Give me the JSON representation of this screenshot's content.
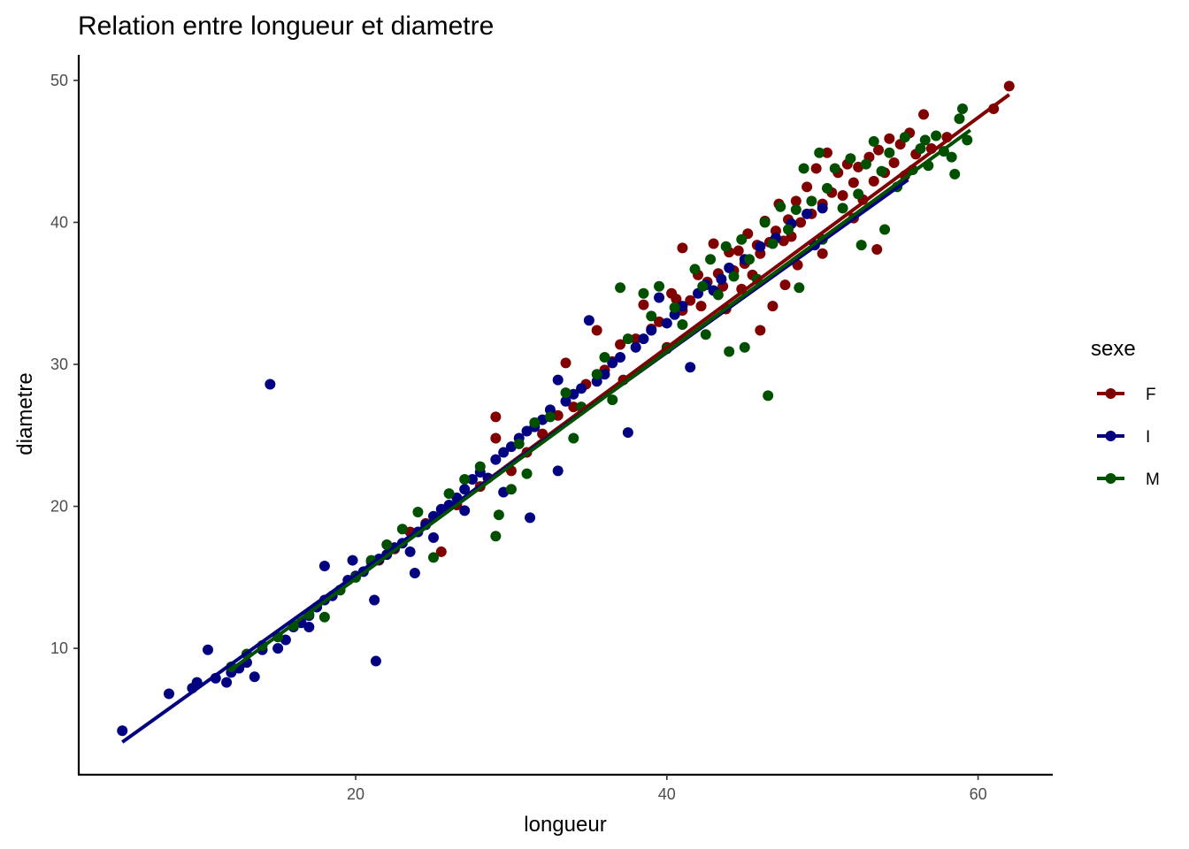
{
  "chart_data": {
    "type": "scatter",
    "title": "Relation entre longueur et diametre",
    "xlabel": "longueur",
    "ylabel": "diametre",
    "xlim": [
      2.2,
      64.8
    ],
    "ylim": [
      1.1,
      51.8
    ],
    "xticks": [
      20,
      40,
      60
    ],
    "yticks": [
      10,
      20,
      30,
      40,
      50
    ],
    "grid": false,
    "legend": {
      "title": "sexe",
      "position": "right"
    },
    "series": [
      {
        "name": "F",
        "color": "#800000",
        "trend": {
          "x": [
            21,
            62
          ],
          "y": [
            15.8,
            49.0
          ]
        },
        "points": [
          [
            21.5,
            16.2
          ],
          [
            22.5,
            17.0
          ],
          [
            23.5,
            18.2
          ],
          [
            24.5,
            18.8
          ],
          [
            25.5,
            16.8
          ],
          [
            26.5,
            20.1
          ],
          [
            28.0,
            21.4
          ],
          [
            29.0,
            26.3
          ],
          [
            29.0,
            24.8
          ],
          [
            30.0,
            22.5
          ],
          [
            31.0,
            23.8
          ],
          [
            32.0,
            25.1
          ],
          [
            33.0,
            26.4
          ],
          [
            33.5,
            30.1
          ],
          [
            34.0,
            27.0
          ],
          [
            34.8,
            28.6
          ],
          [
            35.5,
            32.4
          ],
          [
            36.0,
            29.6
          ],
          [
            36.5,
            30.2
          ],
          [
            37.0,
            31.4
          ],
          [
            37.2,
            28.9
          ],
          [
            38.0,
            31.8
          ],
          [
            38.5,
            34.2
          ],
          [
            39.0,
            32.5
          ],
          [
            39.5,
            33.0
          ],
          [
            40.0,
            31.2
          ],
          [
            40.3,
            35.0
          ],
          [
            40.6,
            34.6
          ],
          [
            41.0,
            33.8
          ],
          [
            41.5,
            34.5
          ],
          [
            42.0,
            36.3
          ],
          [
            42.2,
            34.1
          ],
          [
            42.6,
            35.8
          ],
          [
            43.0,
            38.5
          ],
          [
            43.3,
            36.4
          ],
          [
            43.6,
            35.5
          ],
          [
            44.0,
            37.9
          ],
          [
            44.3,
            36.6
          ],
          [
            44.6,
            38.0
          ],
          [
            45.0,
            37.1
          ],
          [
            45.2,
            39.2
          ],
          [
            45.5,
            36.3
          ],
          [
            45.8,
            38.4
          ],
          [
            46.0,
            37.8
          ],
          [
            46.3,
            40.1
          ],
          [
            46.6,
            38.6
          ],
          [
            47.0,
            39.4
          ],
          [
            47.2,
            41.3
          ],
          [
            47.5,
            38.7
          ],
          [
            47.8,
            40.2
          ],
          [
            48.0,
            39.0
          ],
          [
            48.3,
            41.5
          ],
          [
            48.6,
            40.0
          ],
          [
            49.0,
            42.5
          ],
          [
            49.3,
            40.6
          ],
          [
            49.6,
            43.8
          ],
          [
            50.0,
            41.3
          ],
          [
            50.3,
            44.9
          ],
          [
            50.6,
            42.1
          ],
          [
            51.0,
            43.5
          ],
          [
            51.3,
            41.9
          ],
          [
            51.6,
            44.1
          ],
          [
            52.0,
            42.8
          ],
          [
            52.3,
            43.9
          ],
          [
            52.6,
            41.6
          ],
          [
            53.0,
            44.6
          ],
          [
            53.3,
            42.9
          ],
          [
            53.6,
            45.1
          ],
          [
            54.0,
            43.5
          ],
          [
            54.3,
            45.9
          ],
          [
            54.6,
            44.2
          ],
          [
            55.0,
            45.5
          ],
          [
            55.3,
            43.3
          ],
          [
            55.6,
            46.3
          ],
          [
            56.0,
            44.8
          ],
          [
            56.5,
            47.6
          ],
          [
            57.0,
            45.2
          ],
          [
            58.0,
            46.0
          ],
          [
            61.0,
            48.0
          ],
          [
            62.0,
            49.6
          ],
          [
            41.0,
            38.2
          ],
          [
            43.8,
            33.9
          ],
          [
            46.0,
            32.4
          ],
          [
            47.6,
            35.6
          ],
          [
            48.4,
            37.0
          ],
          [
            50.0,
            37.8
          ],
          [
            52.0,
            40.3
          ],
          [
            53.5,
            38.1
          ],
          [
            44.8,
            35.3
          ],
          [
            46.8,
            34.1
          ]
        ]
      },
      {
        "name": "I",
        "color": "#000080",
        "trend": {
          "x": [
            5.0,
            55.5
          ],
          "y": [
            3.4,
            43.0
          ]
        },
        "points": [
          [
            5.0,
            4.2
          ],
          [
            8.0,
            6.8
          ],
          [
            9.5,
            7.2
          ],
          [
            9.8,
            7.6
          ],
          [
            10.5,
            9.9
          ],
          [
            11.0,
            7.9
          ],
          [
            11.7,
            7.6
          ],
          [
            12.0,
            8.3
          ],
          [
            12.5,
            8.6
          ],
          [
            13.0,
            9.0
          ],
          [
            13.5,
            8.0
          ],
          [
            14.0,
            9.9
          ],
          [
            14.5,
            28.6
          ],
          [
            15.0,
            10.0
          ],
          [
            15.5,
            10.6
          ],
          [
            16.0,
            11.5
          ],
          [
            16.5,
            11.8
          ],
          [
            17.0,
            12.3
          ],
          [
            17.5,
            12.9
          ],
          [
            18.0,
            13.4
          ],
          [
            18.5,
            13.7
          ],
          [
            19.0,
            14.1
          ],
          [
            19.5,
            14.8
          ],
          [
            20.0,
            15.1
          ],
          [
            20.5,
            15.4
          ],
          [
            21.0,
            16.1
          ],
          [
            21.3,
            9.1
          ],
          [
            21.5,
            16.3
          ],
          [
            22.0,
            16.6
          ],
          [
            22.5,
            17.1
          ],
          [
            23.0,
            17.4
          ],
          [
            23.5,
            16.8
          ],
          [
            24.0,
            18.2
          ],
          [
            24.5,
            18.7
          ],
          [
            25.0,
            19.3
          ],
          [
            25.5,
            19.8
          ],
          [
            26.0,
            20.1
          ],
          [
            26.5,
            20.6
          ],
          [
            27.0,
            21.2
          ],
          [
            27.5,
            21.9
          ],
          [
            28.0,
            22.4
          ],
          [
            28.5,
            22.0
          ],
          [
            29.0,
            23.3
          ],
          [
            29.5,
            23.8
          ],
          [
            30.0,
            24.2
          ],
          [
            30.5,
            24.8
          ],
          [
            31.0,
            25.3
          ],
          [
            31.5,
            25.6
          ],
          [
            32.0,
            26.1
          ],
          [
            32.5,
            26.8
          ],
          [
            33.0,
            28.9
          ],
          [
            33.5,
            27.4
          ],
          [
            34.0,
            27.9
          ],
          [
            34.5,
            28.3
          ],
          [
            35.0,
            33.1
          ],
          [
            35.5,
            28.8
          ],
          [
            36.0,
            29.3
          ],
          [
            36.5,
            30.1
          ],
          [
            37.0,
            30.5
          ],
          [
            37.5,
            25.2
          ],
          [
            38.0,
            31.2
          ],
          [
            38.5,
            31.8
          ],
          [
            39.0,
            32.4
          ],
          [
            39.5,
            34.7
          ],
          [
            40.0,
            32.9
          ],
          [
            40.5,
            33.5
          ],
          [
            41.0,
            34.1
          ],
          [
            41.5,
            29.8
          ],
          [
            42.0,
            35.0
          ],
          [
            42.5,
            35.6
          ],
          [
            43.0,
            35.2
          ],
          [
            43.5,
            36.0
          ],
          [
            44.0,
            36.8
          ],
          [
            45.0,
            37.4
          ],
          [
            46.0,
            38.3
          ],
          [
            47.0,
            38.9
          ],
          [
            48.0,
            39.9
          ],
          [
            49.0,
            40.6
          ],
          [
            49.5,
            38.4
          ],
          [
            50.0,
            41.0
          ],
          [
            17.0,
            11.5
          ],
          [
            18.0,
            15.8
          ],
          [
            19.8,
            16.2
          ],
          [
            21.2,
            13.4
          ],
          [
            23.8,
            15.3
          ],
          [
            25.0,
            17.8
          ],
          [
            27.0,
            19.7
          ],
          [
            29.5,
            21.0
          ],
          [
            31.2,
            19.2
          ],
          [
            33.0,
            22.5
          ]
        ]
      },
      {
        "name": "M",
        "color": "#005000",
        "trend": {
          "x": [
            12,
            59.5
          ],
          "y": [
            8.5,
            46.5
          ]
        },
        "points": [
          [
            12.0,
            8.7
          ],
          [
            13.0,
            9.6
          ],
          [
            14.0,
            10.2
          ],
          [
            15.0,
            10.8
          ],
          [
            16.0,
            11.6
          ],
          [
            17.0,
            12.4
          ],
          [
            18.0,
            12.2
          ],
          [
            19.0,
            14.1
          ],
          [
            20.0,
            15.0
          ],
          [
            21.0,
            16.2
          ],
          [
            22.0,
            17.3
          ],
          [
            23.0,
            18.4
          ],
          [
            24.0,
            19.6
          ],
          [
            25.0,
            16.4
          ],
          [
            26.0,
            20.9
          ],
          [
            27.0,
            21.9
          ],
          [
            28.0,
            22.8
          ],
          [
            29.0,
            17.9
          ],
          [
            29.2,
            19.4
          ],
          [
            30.0,
            21.2
          ],
          [
            30.5,
            24.4
          ],
          [
            31.5,
            25.9
          ],
          [
            32.5,
            26.3
          ],
          [
            33.5,
            28.0
          ],
          [
            34.5,
            27.0
          ],
          [
            35.5,
            29.3
          ],
          [
            36.0,
            30.5
          ],
          [
            37.0,
            35.4
          ],
          [
            37.5,
            31.8
          ],
          [
            38.5,
            35.0
          ],
          [
            39.0,
            33.4
          ],
          [
            39.5,
            35.5
          ],
          [
            40.0,
            31.1
          ],
          [
            40.5,
            34.0
          ],
          [
            41.0,
            32.8
          ],
          [
            41.8,
            36.7
          ],
          [
            42.3,
            35.5
          ],
          [
            42.8,
            37.4
          ],
          [
            43.3,
            34.9
          ],
          [
            43.8,
            38.3
          ],
          [
            44.3,
            36.2
          ],
          [
            44.8,
            38.8
          ],
          [
            45.3,
            37.4
          ],
          [
            45.8,
            36.0
          ],
          [
            46.3,
            40.0
          ],
          [
            46.5,
            27.8
          ],
          [
            46.8,
            38.5
          ],
          [
            47.3,
            41.1
          ],
          [
            47.8,
            39.5
          ],
          [
            48.3,
            40.9
          ],
          [
            48.8,
            43.8
          ],
          [
            49.3,
            41.5
          ],
          [
            49.8,
            44.9
          ],
          [
            50.3,
            42.4
          ],
          [
            50.8,
            43.8
          ],
          [
            51.3,
            41.0
          ],
          [
            51.8,
            44.5
          ],
          [
            52.3,
            42.0
          ],
          [
            52.8,
            44.1
          ],
          [
            53.3,
            45.7
          ],
          [
            53.8,
            43.6
          ],
          [
            54.3,
            44.9
          ],
          [
            54.8,
            42.5
          ],
          [
            55.3,
            46.0
          ],
          [
            55.8,
            43.7
          ],
          [
            56.3,
            45.2
          ],
          [
            56.8,
            44.0
          ],
          [
            57.3,
            46.1
          ],
          [
            57.8,
            45.0
          ],
          [
            58.3,
            44.6
          ],
          [
            58.8,
            47.3
          ],
          [
            59.0,
            48.0
          ],
          [
            59.3,
            45.8
          ],
          [
            58.5,
            43.4
          ],
          [
            56.6,
            45.8
          ],
          [
            45.0,
            31.2
          ],
          [
            44.0,
            30.9
          ],
          [
            42.5,
            32.1
          ],
          [
            50.0,
            38.8
          ],
          [
            52.5,
            38.4
          ],
          [
            48.5,
            35.4
          ],
          [
            54.0,
            39.5
          ],
          [
            36.5,
            27.5
          ],
          [
            34.0,
            24.8
          ],
          [
            31.0,
            22.3
          ]
        ]
      }
    ]
  }
}
